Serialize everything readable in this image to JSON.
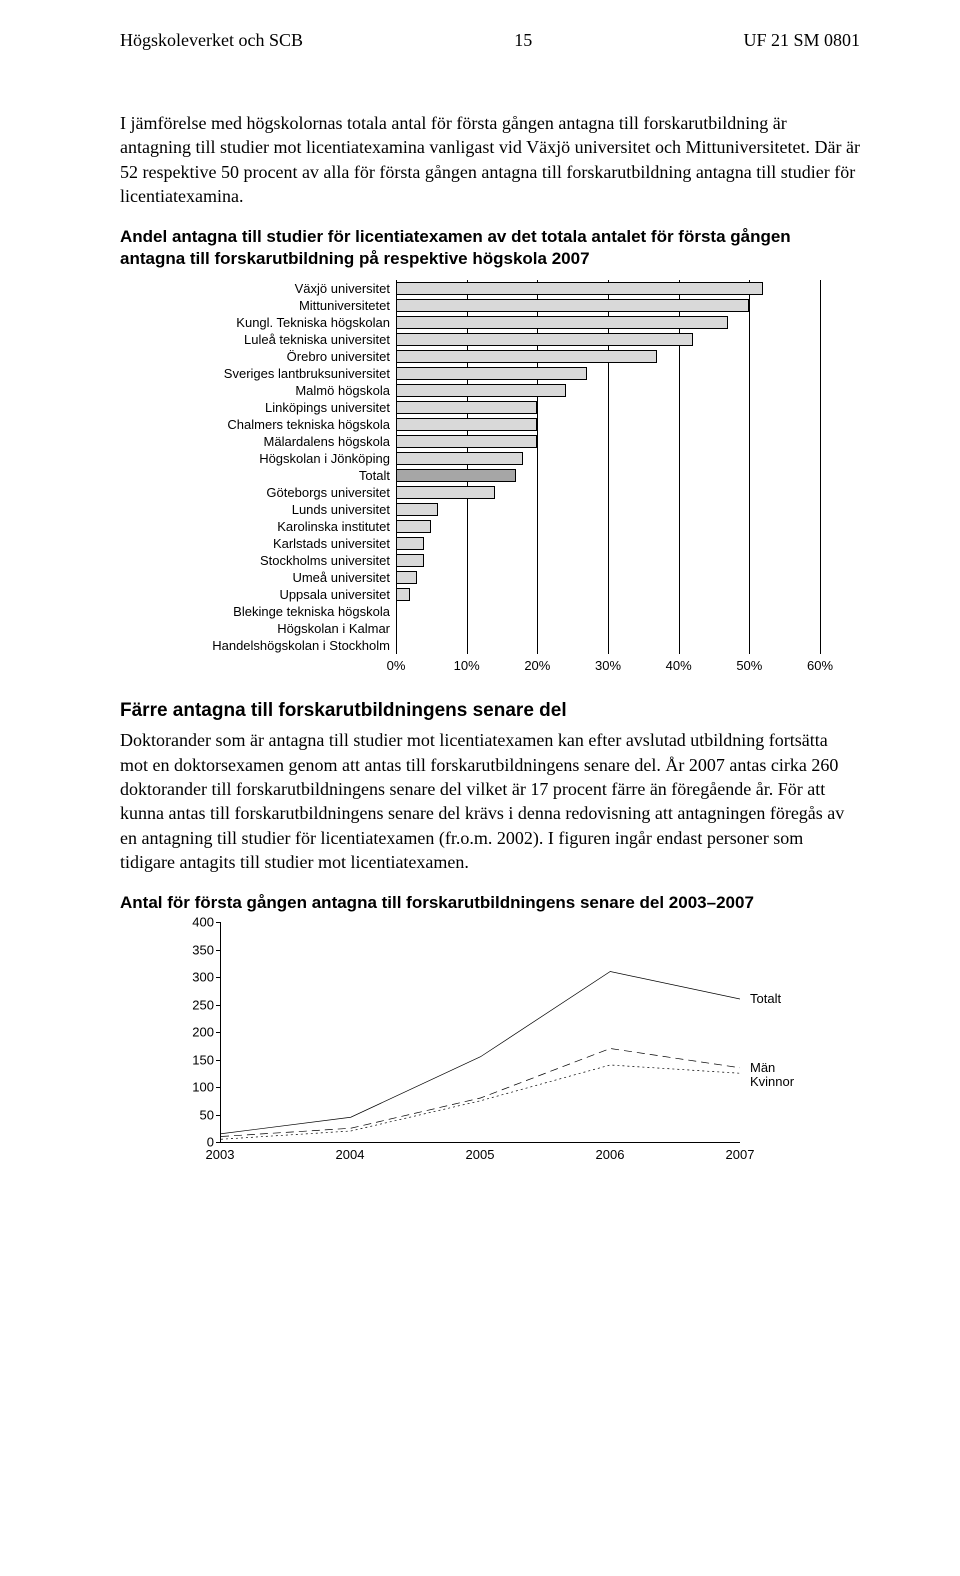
{
  "header": {
    "left": "Högskoleverket och SCB",
    "page": "15",
    "right": "UF 21 SM 0801"
  },
  "para1": "I jämförelse med högskolornas totala antal för första gången antagna till forskarutbildning är antagning till studier mot licentiatexamina vanligast vid Växjö universitet och Mittuniversitetet. Där är 52 respektive 50 procent av alla för första gången antagna till forskarutbildning antagna till studier för licentiatexamina.",
  "bar_chart": {
    "title": "Andel antagna till studier för licentiatexamen av det totala antalet för första gången antagna till forskarutbildning på respektive högskola 2007",
    "bar_fill": "#d9d9d9",
    "totalt_fill": "#a6a6a6",
    "xmax": 60,
    "xticks": [
      0,
      10,
      20,
      30,
      40,
      50,
      60
    ],
    "xtick_labels": [
      "0%",
      "10%",
      "20%",
      "30%",
      "40%",
      "50%",
      "60%"
    ],
    "rows": [
      {
        "label": "Växjö universitet",
        "value": 52,
        "highlight": false
      },
      {
        "label": "Mittuniversitetet",
        "value": 50,
        "highlight": false
      },
      {
        "label": "Kungl. Tekniska högskolan",
        "value": 47,
        "highlight": false
      },
      {
        "label": "Luleå tekniska universitet",
        "value": 42,
        "highlight": false
      },
      {
        "label": "Örebro universitet",
        "value": 37,
        "highlight": false
      },
      {
        "label": "Sveriges lantbruksuniversitet",
        "value": 27,
        "highlight": false
      },
      {
        "label": "Malmö högskola",
        "value": 24,
        "highlight": false
      },
      {
        "label": "Linköpings universitet",
        "value": 20,
        "highlight": false
      },
      {
        "label": "Chalmers tekniska högskola",
        "value": 20,
        "highlight": false
      },
      {
        "label": "Mälardalens högskola",
        "value": 20,
        "highlight": false
      },
      {
        "label": "Högskolan i Jönköping",
        "value": 18,
        "highlight": false
      },
      {
        "label": "Totalt",
        "value": 17,
        "highlight": true
      },
      {
        "label": "Göteborgs universitet",
        "value": 14,
        "highlight": false
      },
      {
        "label": "Lunds universitet",
        "value": 6,
        "highlight": false
      },
      {
        "label": "Karolinska institutet",
        "value": 5,
        "highlight": false
      },
      {
        "label": "Karlstads universitet",
        "value": 4,
        "highlight": false
      },
      {
        "label": "Stockholms universitet",
        "value": 4,
        "highlight": false
      },
      {
        "label": "Umeå universitet",
        "value": 3,
        "highlight": false
      },
      {
        "label": "Uppsala universitet",
        "value": 2,
        "highlight": false
      },
      {
        "label": "Blekinge tekniska högskola",
        "value": 0,
        "highlight": false
      },
      {
        "label": "Högskolan i Kalmar",
        "value": 0,
        "highlight": false
      },
      {
        "label": "Handelshögskolan i Stockholm",
        "value": 0,
        "highlight": false
      }
    ]
  },
  "section_title": "Färre antagna till forskarutbildningens senare del",
  "para2": "Doktorander som är antagna till studier mot licentiatexamen kan efter avslutad utbildning fortsätta mot en doktorsexamen genom att antas till forskarutbildningens senare del. År 2007 antas cirka 260 doktorander till forskarutbildningens senare del vilket är 17 procent färre än föregående år. För att kunna antas till forskarutbildningens senare del krävs i denna redovisning att antagningen föregås av en antagning till studier för licentiatexamen (fr.o.m. 2002). I figuren ingår endast personer som tidigare antagits till studier mot licentiatexamen.",
  "line_chart": {
    "title": "Antal för första gången antagna till forskarutbildningens senare del 2003–2007",
    "ymax": 400,
    "ytick_step": 50,
    "yticks": [
      0,
      50,
      100,
      150,
      200,
      250,
      300,
      350,
      400
    ],
    "x_labels": [
      "2003",
      "2004",
      "2005",
      "2006",
      "2007"
    ],
    "legend": {
      "totalt": "Totalt",
      "man": "Män",
      "kvinnor": "Kvinnor"
    },
    "series": {
      "totalt": {
        "stroke": "#000000",
        "dash": "",
        "points": [
          15,
          45,
          155,
          310,
          260
        ]
      },
      "man": {
        "stroke": "#000000",
        "dash": "8 5",
        "points": [
          10,
          25,
          80,
          170,
          135
        ]
      },
      "kvinnor": {
        "stroke": "#000000",
        "dash": "2 3",
        "points": [
          5,
          20,
          75,
          140,
          125
        ]
      }
    }
  }
}
